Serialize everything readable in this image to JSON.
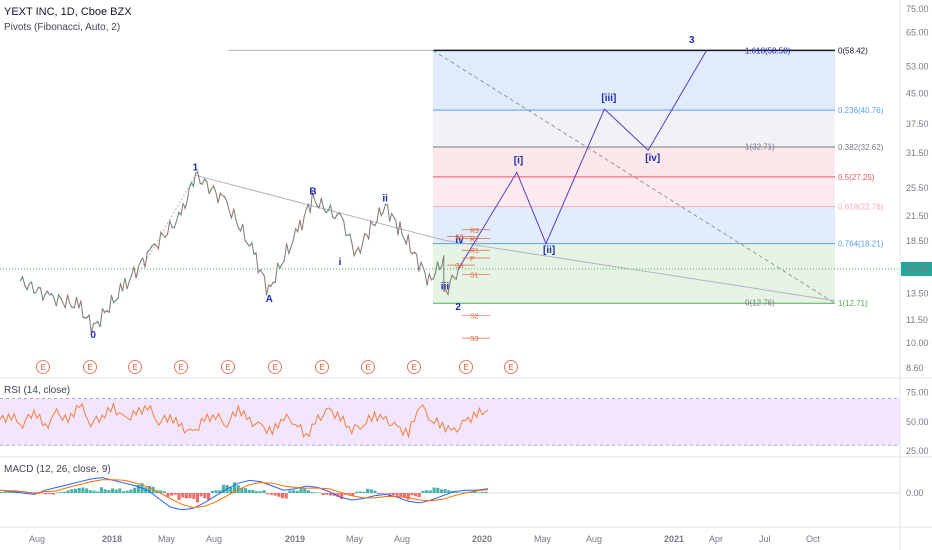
{
  "header": {
    "symbol_line": "YEXT INC, 1D, Cboe BZX",
    "indicator_line": "Pivots (Fibonacci, Auto, 2)"
  },
  "rsi_panel": {
    "label": "RSI (14, close)"
  },
  "macd_panel": {
    "label": "MACD (12, 26, close, 9)"
  },
  "chart_data": {
    "type": "line",
    "title": "YEXT INC, 1D, Cboe BZX",
    "price_axis": {
      "scale": "log",
      "ticks": [
        "75.00",
        "65.00",
        "53.00",
        "45.00",
        "37.50",
        "31.50",
        "25.50",
        "21.50",
        "18.50",
        "15.50",
        "13.50",
        "11.50",
        "10.00",
        "8.60"
      ],
      "current_price": "15.63"
    },
    "time_axis": {
      "ticks": [
        "Aug",
        "2018",
        "May",
        "Aug",
        "2019",
        "May",
        "Aug",
        "2020",
        "May",
        "Aug",
        "2021",
        "Apr",
        "Jul",
        "Oct"
      ]
    },
    "price_path": [
      {
        "x": "2017-07",
        "y": 14.5
      },
      {
        "x": "2017-09",
        "y": 13.2
      },
      {
        "x": "2017-11",
        "y": 12.5
      },
      {
        "x": "2017-12",
        "y": 10.9
      },
      {
        "x": "2018-02",
        "y": 13.8
      },
      {
        "x": "2018-04",
        "y": 17.5
      },
      {
        "x": "2018-06",
        "y": 21.5
      },
      {
        "x": "2018-07",
        "y": 27.5
      },
      {
        "x": "2018-09",
        "y": 23.5
      },
      {
        "x": "2018-11",
        "y": 17.0
      },
      {
        "x": "2018-12",
        "y": 13.6
      },
      {
        "x": "2019-02",
        "y": 19.5
      },
      {
        "x": "2019-03",
        "y": 23.8
      },
      {
        "x": "2019-05",
        "y": 21.0
      },
      {
        "x": "2019-06",
        "y": 17.0
      },
      {
        "x": "2019-07",
        "y": 20.0
      },
      {
        "x": "2019-08",
        "y": 22.8
      },
      {
        "x": "2019-09",
        "y": 19.8
      },
      {
        "x": "2019-10",
        "y": 17.0
      },
      {
        "x": "2019-11",
        "y": 14.5
      },
      {
        "x": "2019-12",
        "y": 16.5
      },
      {
        "x": "2019-12",
        "y": 13.3
      },
      {
        "x": "2020-01",
        "y": 15.63
      }
    ],
    "projection_path": [
      {
        "x": "2020-01",
        "y": 15.63
      },
      {
        "x": "2020-05",
        "y": 28.0
      },
      {
        "x": "2020-07",
        "y": 18.21
      },
      {
        "x": "2020-11",
        "y": 41.0
      },
      {
        "x": "2021-02",
        "y": 32.0
      },
      {
        "x": "2021-06",
        "y": 58.42
      }
    ],
    "wave_labels": [
      {
        "text": "0",
        "x": "2017-12",
        "y": 10.3
      },
      {
        "text": "1",
        "x": "2018-07",
        "y": 28.3
      },
      {
        "text": "A",
        "x": "2018-12",
        "y": 12.8
      },
      {
        "text": "B",
        "x": "2019-03",
        "y": 24.5
      },
      {
        "text": "i",
        "x": "2019-05",
        "y": 16.0
      },
      {
        "text": "ii",
        "x": "2019-08",
        "y": 23.5
      },
      {
        "text": "iii",
        "x": "2019-12",
        "y": 13.8
      },
      {
        "text": "iv",
        "x": "2020-01",
        "y": 18.3
      },
      {
        "text": "2",
        "x": "2020-01",
        "y": 12.2
      },
      {
        "text": "[i]",
        "x": "2020-05",
        "y": 29.5
      },
      {
        "text": "[ii]",
        "x": "2020-07",
        "y": 17.2
      },
      {
        "text": "[iii]",
        "x": "2020-11",
        "y": 43.0
      },
      {
        "text": "[iv]",
        "x": "2021-02",
        "y": 30.0
      },
      {
        "text": "3",
        "x": "2021-05",
        "y": 61.0
      }
    ],
    "fib_levels": [
      {
        "ratio": "0",
        "price": 58.42,
        "label": "0(58.42)",
        "color": "#131722"
      },
      {
        "ratio": "0.236",
        "price": 40.76,
        "label": "0.236(40.76)",
        "color": "#5b9cf6"
      },
      {
        "ratio": "0.382",
        "price": 32.62,
        "label": "0.382(32.62)",
        "color": "#787b86"
      },
      {
        "ratio": "0.5",
        "price": 27.25,
        "label": "0.5(27.25)",
        "color": "#f7525f"
      },
      {
        "ratio": "0.618",
        "price": 22.76,
        "label": "0.618(22.76)",
        "color": "#f7a8b5"
      },
      {
        "ratio": "0.764",
        "price": 18.21,
        "label": "0.764(18.21)",
        "color": "#5b9cf6"
      },
      {
        "ratio": "1",
        "price": 12.71,
        "label": "1(12.71)",
        "color": "#4caf50"
      }
    ],
    "fib_inline_labels": [
      "1.618(58.58)",
      "1(32.71)",
      "0(12.76)"
    ],
    "pivot_labels": [
      "R3",
      "R2",
      "R1",
      "P",
      "S1",
      "S2",
      "S3",
      "S2",
      "S3"
    ],
    "earnings_marker": "E",
    "rsi": {
      "axis_ticks": [
        "75.00",
        "50.00",
        "25.00"
      ],
      "band": [
        30,
        70
      ],
      "values": [
        52,
        55,
        48,
        60,
        45,
        58,
        50,
        66,
        49,
        55,
        62,
        52,
        57,
        64,
        50,
        55,
        45,
        40,
        52,
        56,
        48,
        62,
        50,
        46,
        41,
        55,
        50,
        38,
        52,
        60,
        53,
        44,
        48,
        56,
        51,
        45,
        40,
        66,
        52,
        47,
        41,
        50,
        57,
        60
      ]
    },
    "macd": {
      "axis_ticks": [
        "0.00"
      ],
      "histogram": [
        0.1,
        0.2,
        0.05,
        -0.1,
        -0.2,
        0.1,
        0.3,
        0.4,
        0.2,
        0.5,
        0.6,
        0.3,
        0.7,
        0.5,
        0.2,
        -0.3,
        -0.8,
        -0.9,
        -0.5,
        0.2,
        0.6,
        0.8,
        0.5,
        0.3,
        -0.2,
        -0.4,
        0.2,
        0.4,
        0.1,
        -0.3,
        -0.5,
        -0.2,
        0.1,
        0.3,
        -0.1,
        -0.4,
        -0.6,
        -0.3,
        0.2,
        0.4,
        0.3,
        0.1,
        0.2,
        0.1
      ],
      "macd_line": [
        0.2,
        0.1,
        0,
        -0.1,
        0.2,
        0.4,
        0.6,
        0.8,
        1.0,
        1.1,
        0.9,
        0.7,
        0.5,
        0.2,
        -0.4,
        -1.0,
        -1.2,
        -1.1,
        -0.7,
        -0.2,
        0.3,
        0.7,
        0.9,
        0.8,
        0.5,
        0.2,
        0.3,
        0.5,
        0.4,
        0.1,
        -0.3,
        -0.5,
        -0.4,
        -0.2,
        -0.1,
        -0.3,
        -0.6,
        -0.7,
        -0.5,
        -0.2,
        0.1,
        0.2,
        0.2,
        0.3
      ]
    }
  }
}
